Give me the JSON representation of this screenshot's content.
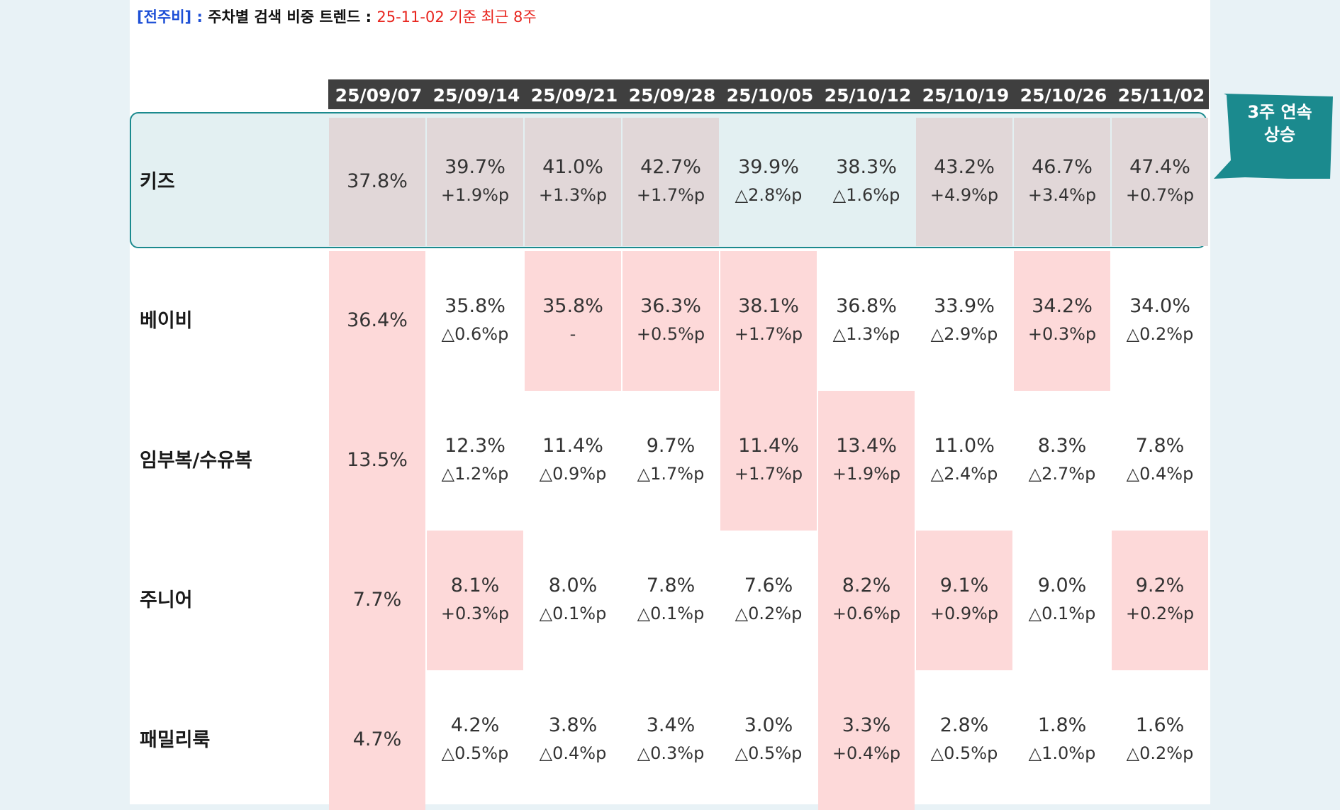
{
  "title": {
    "bracket": "[전주비]",
    "separator": " : ",
    "main": "주차별 검색 비중 트렌드",
    "separator2": " : ",
    "date_note": "25-11-02 기준 최근 8주"
  },
  "columns": [
    "25/09/07",
    "25/09/14",
    "25/09/21",
    "25/09/28",
    "25/10/05",
    "25/10/12",
    "25/10/19",
    "25/10/26",
    "25/11/02"
  ],
  "rows": [
    {
      "label": "키즈",
      "cells": [
        {
          "value": "37.8%",
          "change": "",
          "highlight": true
        },
        {
          "value": "39.7%",
          "change": "+1.9%p",
          "highlight": true
        },
        {
          "value": "41.0%",
          "change": "+1.3%p",
          "highlight": true
        },
        {
          "value": "42.7%",
          "change": "+1.7%p",
          "highlight": true
        },
        {
          "value": "39.9%",
          "change": "△2.8%p",
          "highlight": false
        },
        {
          "value": "38.3%",
          "change": "△1.6%p",
          "highlight": false
        },
        {
          "value": "43.2%",
          "change": "+4.9%p",
          "highlight": true
        },
        {
          "value": "46.7%",
          "change": "+3.4%p",
          "highlight": true
        },
        {
          "value": "47.4%",
          "change": "+0.7%p",
          "highlight": true
        }
      ]
    },
    {
      "label": "베이비",
      "cells": [
        {
          "value": "36.4%",
          "change": "",
          "highlight": true
        },
        {
          "value": "35.8%",
          "change": "△0.6%p",
          "highlight": false
        },
        {
          "value": "35.8%",
          "change": "-",
          "highlight": true
        },
        {
          "value": "36.3%",
          "change": "+0.5%p",
          "highlight": true
        },
        {
          "value": "38.1%",
          "change": "+1.7%p",
          "highlight": true
        },
        {
          "value": "36.8%",
          "change": "△1.3%p",
          "highlight": false
        },
        {
          "value": "33.9%",
          "change": "△2.9%p",
          "highlight": false
        },
        {
          "value": "34.2%",
          "change": "+0.3%p",
          "highlight": true
        },
        {
          "value": "34.0%",
          "change": "△0.2%p",
          "highlight": false
        }
      ]
    },
    {
      "label": "임부복/수유복",
      "cells": [
        {
          "value": "13.5%",
          "change": "",
          "highlight": true
        },
        {
          "value": "12.3%",
          "change": "△1.2%p",
          "highlight": false
        },
        {
          "value": "11.4%",
          "change": "△0.9%p",
          "highlight": false
        },
        {
          "value": "9.7%",
          "change": "△1.7%p",
          "highlight": false
        },
        {
          "value": "11.4%",
          "change": "+1.7%p",
          "highlight": true
        },
        {
          "value": "13.4%",
          "change": "+1.9%p",
          "highlight": true
        },
        {
          "value": "11.0%",
          "change": "△2.4%p",
          "highlight": false
        },
        {
          "value": "8.3%",
          "change": "△2.7%p",
          "highlight": false
        },
        {
          "value": "7.8%",
          "change": "△0.4%p",
          "highlight": false
        }
      ]
    },
    {
      "label": "주니어",
      "cells": [
        {
          "value": "7.7%",
          "change": "",
          "highlight": true
        },
        {
          "value": "8.1%",
          "change": "+0.3%p",
          "highlight": true
        },
        {
          "value": "8.0%",
          "change": "△0.1%p",
          "highlight": false
        },
        {
          "value": "7.8%",
          "change": "△0.1%p",
          "highlight": false
        },
        {
          "value": "7.6%",
          "change": "△0.2%p",
          "highlight": false
        },
        {
          "value": "8.2%",
          "change": "+0.6%p",
          "highlight": true
        },
        {
          "value": "9.1%",
          "change": "+0.9%p",
          "highlight": true
        },
        {
          "value": "9.0%",
          "change": "△0.1%p",
          "highlight": false
        },
        {
          "value": "9.2%",
          "change": "+0.2%p",
          "highlight": true
        }
      ]
    },
    {
      "label": "패밀리룩",
      "cells": [
        {
          "value": "4.7%",
          "change": "",
          "highlight": true
        },
        {
          "value": "4.2%",
          "change": "△0.5%p",
          "highlight": false
        },
        {
          "value": "3.8%",
          "change": "△0.4%p",
          "highlight": false
        },
        {
          "value": "3.4%",
          "change": "△0.3%p",
          "highlight": false
        },
        {
          "value": "3.0%",
          "change": "△0.5%p",
          "highlight": false
        },
        {
          "value": "3.3%",
          "change": "+0.4%p",
          "highlight": true
        },
        {
          "value": "2.8%",
          "change": "△0.5%p",
          "highlight": false
        },
        {
          "value": "1.8%",
          "change": "△1.0%p",
          "highlight": false
        },
        {
          "value": "1.6%",
          "change": "△0.2%p",
          "highlight": false
        }
      ]
    }
  ],
  "callout": {
    "line1": "3주 연속",
    "line2": "상승",
    "color": "#1b8a8e"
  },
  "colors": {
    "header_bg": "#3f3f3f",
    "highlight": "#fdd9d9",
    "kids_box": "#1b8a8e",
    "title_bracket": "#1d4fd6",
    "title_date": "#e8261f"
  }
}
